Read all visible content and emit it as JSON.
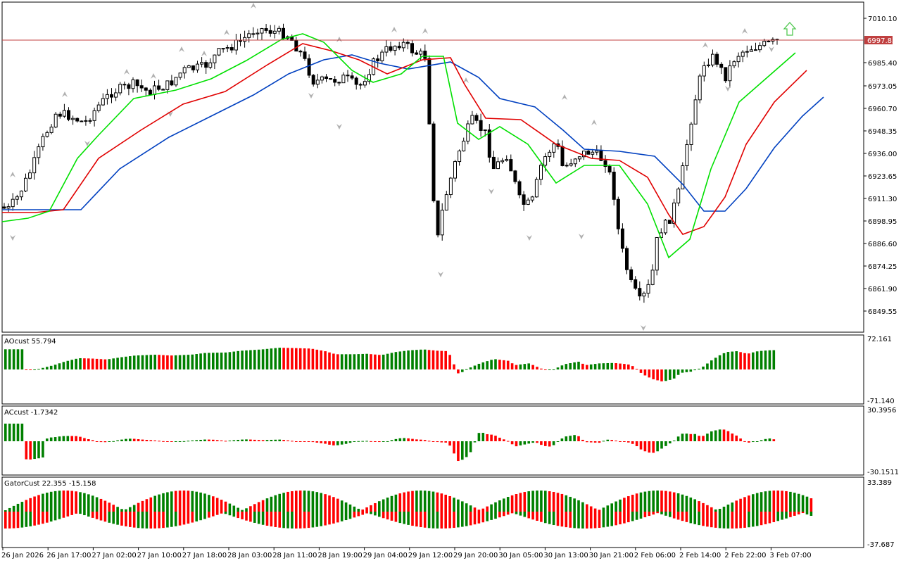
{
  "main": {
    "price_ticks": [
      "7010.10",
      "6985.40",
      "6973.05",
      "6960.70",
      "6948.35",
      "6936.00",
      "6923.65",
      "6911.30",
      "6898.95",
      "6886.60",
      "6874.25",
      "6861.90",
      "6849.55"
    ],
    "current_price": "6997.85"
  },
  "ao": {
    "label": "AOcust 55.794",
    "max": "72.161",
    "min": "-71.140"
  },
  "ac": {
    "label": "ACcust -1.7342",
    "max": "30.3956",
    "min": "-30.1511"
  },
  "gator": {
    "label": "GatorCust 22.355 -15.158",
    "max": "33.389",
    "min": "-37.687"
  },
  "time_axis": [
    "26 Jan 2026",
    "26 Jan 17:00",
    "27 Jan 02:00",
    "27 Jan 10:00",
    "27 Jan 18:00",
    "28 Jan 03:00",
    "28 Jan 11:00",
    "28 Jan 19:00",
    "29 Jan 04:00",
    "29 Jan 12:00",
    "29 Jan 20:00",
    "30 Jan 05:00",
    "30 Jan 13:00",
    "30 Jan 21:00",
    "2 Feb 06:00",
    "2 Feb 14:00",
    "2 Feb 22:00",
    "3 Feb 07:00"
  ],
  "colors": {
    "bull": "#008000",
    "bear": "#ff0000",
    "jaw": "#0040c0",
    "teeth": "#e00000",
    "lips": "#00e000",
    "price_line": "#c04040",
    "signal_arrow": "#50c850"
  }
}
